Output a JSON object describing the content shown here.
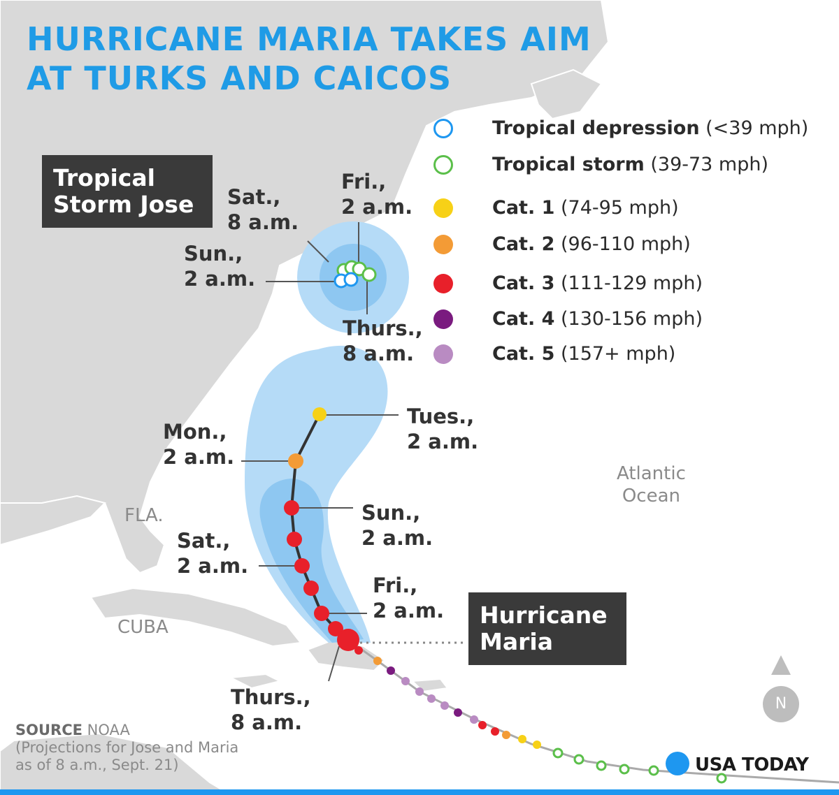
{
  "title": {
    "line1": "HURRICANE MARIA TAKES AIM",
    "line2": "AT TURKS AND CAICOS"
  },
  "storms": {
    "jose": {
      "name_line1": "Tropical",
      "name_line2": "Storm Jose"
    },
    "maria": {
      "name_line1": "Hurricane",
      "name_line2": "Maria"
    }
  },
  "jose_labels": {
    "fri": {
      "day": "Fri.,",
      "time": "2 a.m."
    },
    "sat": {
      "day": "Sat.,",
      "time": "8 a.m."
    },
    "sun": {
      "day": "Sun.,",
      "time": "2 a.m."
    },
    "thurs": {
      "day": "Thurs.,",
      "time": "8 a.m."
    }
  },
  "maria_labels": {
    "tues": {
      "day": "Tues.,",
      "time": "2 a.m."
    },
    "mon": {
      "day": "Mon.,",
      "time": "2 a.m."
    },
    "sun": {
      "day": "Sun.,",
      "time": "2 a.m."
    },
    "sat": {
      "day": "Sat.,",
      "time": "2 a.m."
    },
    "fri": {
      "day": "Fri.,",
      "time": "2 a.m."
    },
    "thurs": {
      "day": "Thurs.,",
      "time": "8 a.m."
    }
  },
  "regions": {
    "fla": "FLA.",
    "cuba": "CUBA",
    "atlantic_line1": "Atlantic",
    "atlantic_line2": "Ocean"
  },
  "legend": [
    {
      "name": "Tropical depression",
      "range": "(<39 mph)",
      "color": "#1e97f0",
      "hollow": true
    },
    {
      "name": "Tropical storm",
      "range": "(39-73 mph)",
      "color": "#5bbf4a",
      "hollow": true
    },
    {
      "name": "Cat. 1",
      "range": "(74-95 mph)",
      "color": "#f7d117",
      "hollow": false
    },
    {
      "name": "Cat. 2",
      "range": "(96-110 mph)",
      "color": "#f39b36",
      "hollow": false
    },
    {
      "name": "Cat. 3",
      "range": "(111-129 mph)",
      "color": "#e8202a",
      "hollow": false
    },
    {
      "name": "Cat. 4",
      "range": "(130-156 mph)",
      "color": "#7a1b7f",
      "hollow": false
    },
    {
      "name": "Cat. 5",
      "range": "(157+ mph)",
      "color": "#b98bc2",
      "hollow": false
    }
  ],
  "source": {
    "label": "SOURCE",
    "org": "NOAA",
    "note_line1": "(Projections for Jose and Maria",
    "note_line2": "as of 8 a.m., Sept. 21)"
  },
  "compass": {
    "label": "N"
  },
  "brand": {
    "name": "USA TODAY",
    "color": "#1e97f0"
  },
  "colors": {
    "title": "#1f9be6",
    "label_box": "#3a3a3a",
    "cone_outer": "#b5dbf7",
    "cone_inner": "#8ec7f1",
    "land": "#d9d9d9",
    "track": "#333333"
  }
}
